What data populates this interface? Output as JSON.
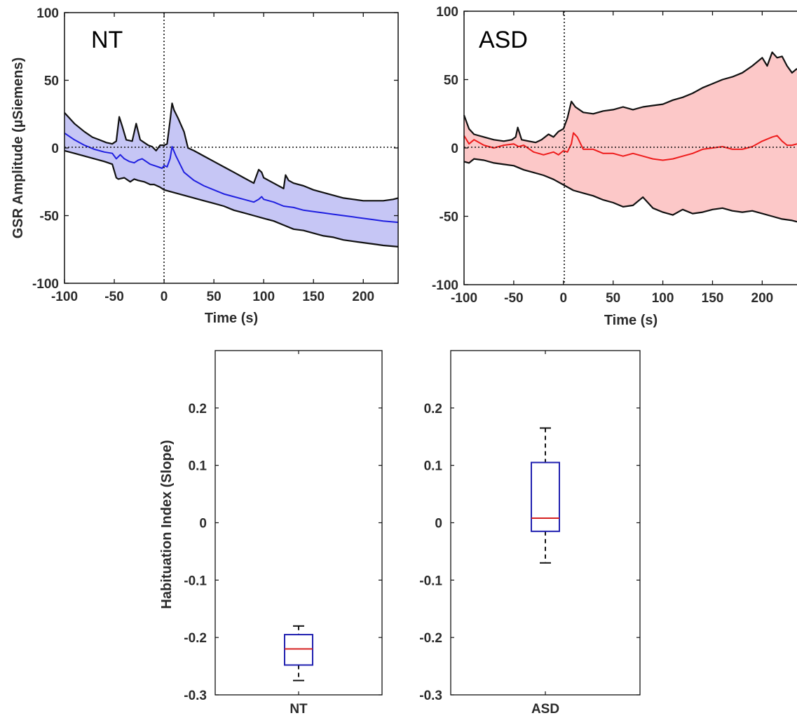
{
  "chart_data": [
    {
      "type": "area",
      "panel": "NT",
      "title": "NT",
      "xlabel": "Time (s)",
      "ylabel": "GSR Amplitude (µSiemens)",
      "xlim": [
        -100,
        235
      ],
      "ylim": [
        -100,
        100
      ],
      "xticks": [
        -100,
        -50,
        0,
        50,
        100,
        150,
        200
      ],
      "yticks": [
        100,
        50,
        0,
        -50,
        -100
      ],
      "reference_lines": {
        "x": 0,
        "y": 0,
        "style": "dotted"
      },
      "colors": {
        "fill": "#c6c6f5",
        "mean": "#1f1fe0",
        "bounds": "#111111"
      },
      "series": [
        {
          "role": "upper",
          "x": [
            -100,
            -90,
            -80,
            -72,
            -65,
            -58,
            -52,
            -48,
            -45,
            -42,
            -38,
            -32,
            -28,
            -24,
            -20,
            -16,
            -12,
            -8,
            -4,
            0,
            3,
            6,
            8,
            10,
            14,
            20,
            24,
            30,
            40,
            50,
            60,
            70,
            80,
            90,
            95,
            98,
            100,
            110,
            120,
            122,
            125,
            130,
            140,
            150,
            160,
            170,
            180,
            190,
            200,
            210,
            220,
            230,
            235
          ],
          "values": [
            26,
            18,
            12,
            8,
            6,
            4,
            3,
            5,
            23,
            16,
            6,
            5,
            18,
            6,
            4,
            2,
            1,
            -2,
            2,
            2,
            3,
            20,
            33,
            28,
            22,
            12,
            0,
            -2,
            -6,
            -10,
            -14,
            -18,
            -22,
            -26,
            -16,
            -18,
            -22,
            -26,
            -30,
            -20,
            -24,
            -26,
            -28,
            -31,
            -33,
            -35,
            -37,
            -38,
            -39,
            -39,
            -39,
            -38,
            -37
          ]
        },
        {
          "role": "mean",
          "x": [
            -100,
            -90,
            -80,
            -70,
            -60,
            -52,
            -48,
            -44,
            -40,
            -35,
            -30,
            -26,
            -22,
            -18,
            -14,
            -10,
            -6,
            -2,
            0,
            3,
            6,
            8,
            12,
            20,
            30,
            40,
            50,
            60,
            70,
            80,
            90,
            95,
            98,
            100,
            110,
            120,
            130,
            140,
            150,
            160,
            170,
            180,
            190,
            200,
            210,
            220,
            235
          ],
          "values": [
            11,
            6,
            2,
            -1,
            -3,
            -4,
            -8,
            -5,
            -8,
            -10,
            -11,
            -9,
            -8,
            -10,
            -12,
            -13,
            -14,
            -15,
            -13,
            -14,
            -8,
            1,
            -6,
            -18,
            -24,
            -28,
            -31,
            -34,
            -36,
            -38,
            -40,
            -38,
            -36,
            -38,
            -40,
            -43,
            -44,
            -46,
            -47,
            -48,
            -49,
            -50,
            -51,
            -52,
            -53,
            -54,
            -55
          ]
        },
        {
          "role": "lower",
          "x": [
            -100,
            -90,
            -80,
            -70,
            -60,
            -52,
            -48,
            -46,
            -40,
            -34,
            -30,
            -26,
            -20,
            -14,
            -10,
            -4,
            0,
            10,
            20,
            30,
            40,
            50,
            60,
            70,
            80,
            90,
            100,
            110,
            120,
            130,
            140,
            150,
            160,
            170,
            180,
            190,
            200,
            210,
            220,
            235
          ],
          "values": [
            -2,
            -4,
            -6,
            -8,
            -10,
            -12,
            -22,
            -23,
            -22,
            -25,
            -23,
            -24,
            -25,
            -27,
            -27,
            -29,
            -31,
            -33,
            -35,
            -37,
            -39,
            -41,
            -43,
            -46,
            -48,
            -50,
            -52,
            -54,
            -57,
            -60,
            -61,
            -63,
            -65,
            -66,
            -68,
            -69,
            -70,
            -71,
            -72,
            -73
          ]
        }
      ]
    },
    {
      "type": "area",
      "panel": "ASD",
      "title": "ASD",
      "xlabel": "Time (s)",
      "ylabel": "",
      "xlim": [
        -100,
        235
      ],
      "ylim": [
        -100,
        100
      ],
      "xticks": [
        -100,
        -50,
        0,
        50,
        100,
        150,
        200
      ],
      "yticks": [
        100,
        50,
        0,
        -50,
        -100
      ],
      "reference_lines": {
        "x": 0,
        "y": 0,
        "style": "dotted"
      },
      "colors": {
        "fill": "#fcc8c8",
        "mean": "#ee1c1c",
        "bounds": "#111111"
      },
      "series": [
        {
          "role": "upper",
          "x": [
            -100,
            -95,
            -90,
            -80,
            -70,
            -60,
            -52,
            -48,
            -46,
            -42,
            -35,
            -28,
            -22,
            -15,
            -10,
            -5,
            0,
            4,
            8,
            12,
            20,
            30,
            40,
            50,
            60,
            70,
            80,
            90,
            100,
            110,
            120,
            130,
            140,
            150,
            160,
            170,
            180,
            190,
            200,
            205,
            210,
            215,
            220,
            225,
            230,
            235
          ],
          "values": [
            24,
            14,
            10,
            8,
            6,
            5,
            6,
            8,
            15,
            6,
            5,
            4,
            6,
            10,
            8,
            12,
            14,
            22,
            34,
            30,
            26,
            25,
            27,
            28,
            30,
            28,
            30,
            31,
            32,
            35,
            37,
            40,
            44,
            47,
            50,
            52,
            55,
            60,
            66,
            60,
            70,
            66,
            67,
            60,
            55,
            58
          ]
        },
        {
          "role": "mean",
          "x": [
            -100,
            -95,
            -90,
            -80,
            -70,
            -60,
            -50,
            -45,
            -40,
            -30,
            -20,
            -10,
            -5,
            0,
            4,
            8,
            10,
            14,
            20,
            30,
            40,
            50,
            60,
            70,
            80,
            90,
            100,
            110,
            120,
            130,
            140,
            150,
            160,
            170,
            180,
            190,
            200,
            210,
            215,
            220,
            225,
            230,
            235
          ],
          "values": [
            9,
            3,
            6,
            2,
            0,
            2,
            3,
            1,
            2,
            -3,
            -5,
            -3,
            -5,
            -2,
            -3,
            3,
            11,
            8,
            -1,
            -1,
            -4,
            -4,
            -6,
            -4,
            -6,
            -8,
            -9,
            -8,
            -6,
            -4,
            -1,
            0,
            1,
            -1,
            -1,
            1,
            5,
            8,
            9,
            5,
            2,
            2,
            3
          ]
        },
        {
          "role": "lower",
          "x": [
            -100,
            -95,
            -90,
            -80,
            -70,
            -60,
            -50,
            -40,
            -30,
            -20,
            -10,
            0,
            10,
            20,
            30,
            40,
            50,
            60,
            70,
            80,
            90,
            100,
            110,
            120,
            130,
            140,
            150,
            160,
            170,
            180,
            190,
            200,
            210,
            220,
            230,
            235
          ],
          "values": [
            -10,
            -11,
            -8,
            -9,
            -11,
            -12,
            -13,
            -16,
            -18,
            -20,
            -23,
            -27,
            -31,
            -33,
            -35,
            -38,
            -40,
            -43,
            -42,
            -36,
            -44,
            -47,
            -49,
            -45,
            -48,
            -47,
            -45,
            -44,
            -46,
            -47,
            -46,
            -48,
            -50,
            -52,
            -53,
            -54
          ]
        }
      ]
    },
    {
      "type": "box",
      "panel": "NT",
      "title": "",
      "xlabel": "",
      "ylabel": "Habituation Index (Slope)",
      "categories": [
        "NT"
      ],
      "ylim": [
        -0.3,
        0.3
      ],
      "yticks": [
        "0.2",
        "0.1",
        "0",
        "-0.1",
        "-0.2",
        "-0.3"
      ],
      "box": {
        "whisker_low": -0.275,
        "q1": -0.248,
        "median": -0.22,
        "q3": -0.195,
        "whisker_high": -0.18
      },
      "colors": {
        "box": "#2020b0",
        "median": "#d62020",
        "whisker": "#111111"
      }
    },
    {
      "type": "box",
      "panel": "ASD",
      "title": "",
      "xlabel": "",
      "ylabel": "",
      "categories": [
        "ASD"
      ],
      "ylim": [
        -0.3,
        0.3
      ],
      "yticks": [
        "0.2",
        "0.1",
        "0",
        "-0.1",
        "-0.2",
        "-0.3"
      ],
      "box": {
        "whisker_low": -0.07,
        "q1": -0.015,
        "median": 0.008,
        "q3": 0.105,
        "whisker_high": 0.165
      },
      "colors": {
        "box": "#2020b0",
        "median": "#d62020",
        "whisker": "#111111"
      }
    }
  ]
}
